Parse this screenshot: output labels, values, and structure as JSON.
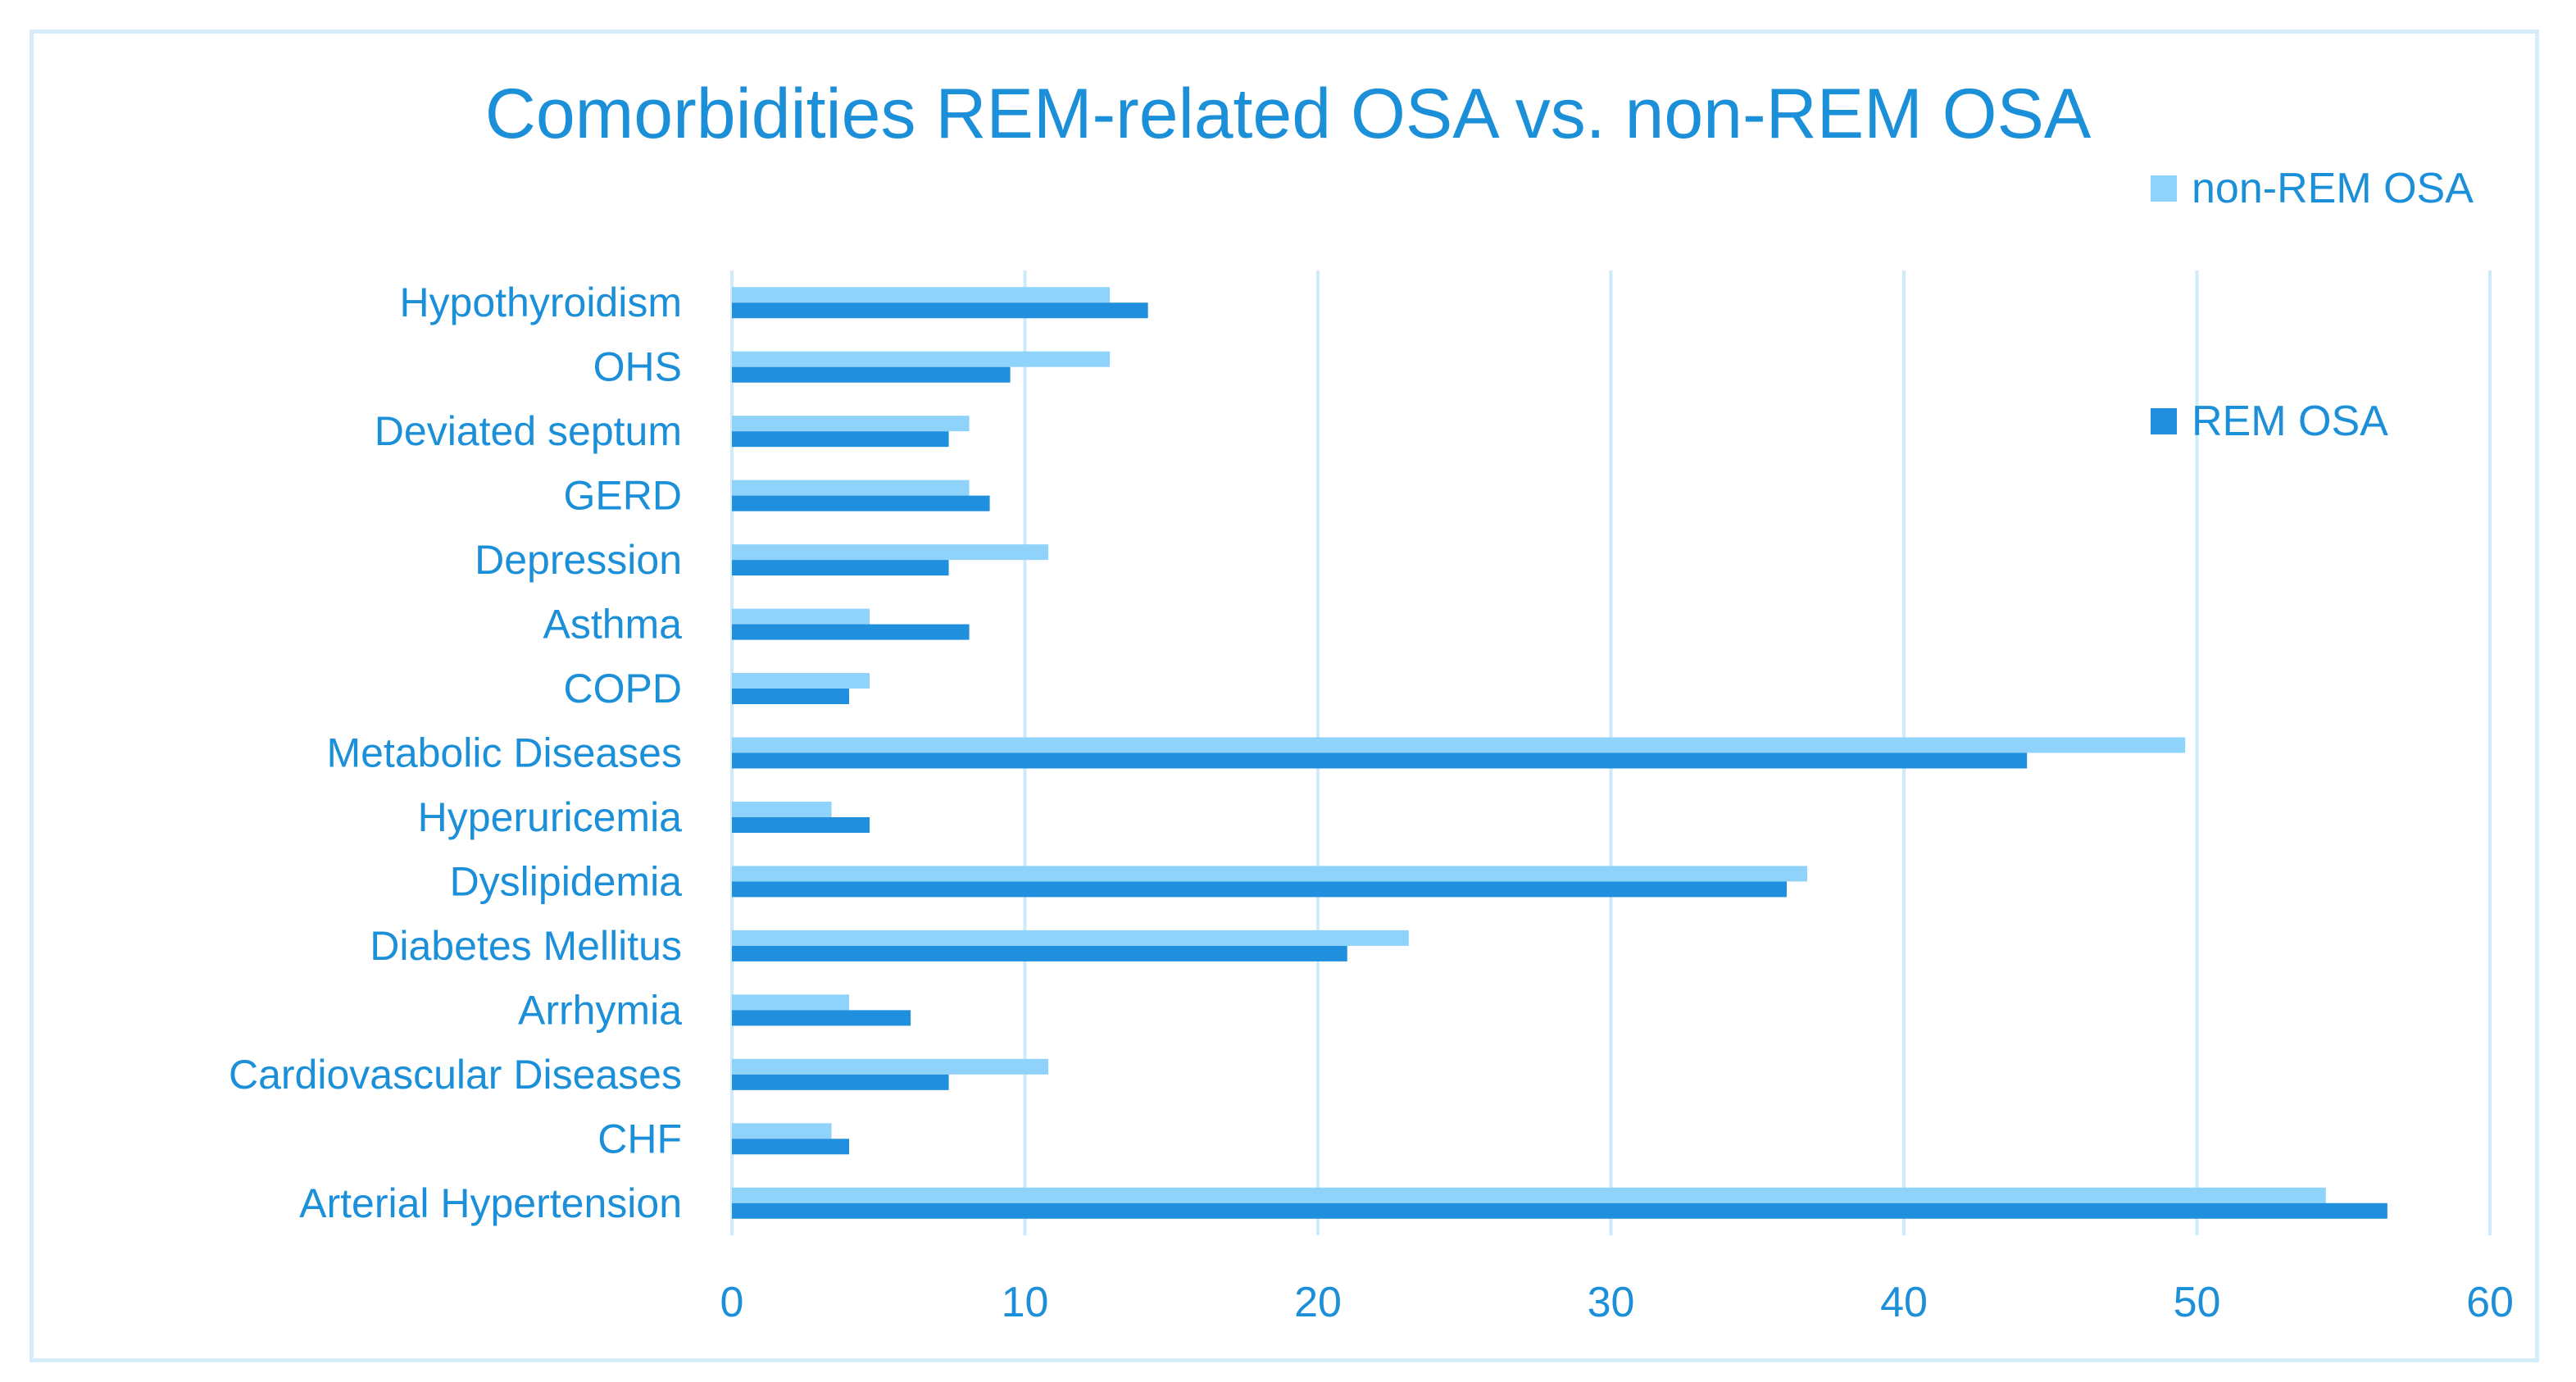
{
  "chart_data": {
    "type": "bar",
    "orientation": "horizontal",
    "title": "Comorbidities REM-related OSA  vs. non-REM OSA",
    "categories": [
      "Hypothyroidism",
      "OHS",
      "Deviated septum",
      "GERD",
      "Depression",
      "Asthma",
      "COPD",
      "Metabolic Diseases",
      "Hyperuricemia",
      "Dyslipidemia",
      "Diabetes Mellitus",
      "Arrhymia",
      "Cardiovascular Diseases",
      "CHF",
      "Arterial Hypertension"
    ],
    "series": [
      {
        "name": "non-REM OSA",
        "color": "#8fd3fb",
        "values": [
          12.9,
          12.9,
          8.1,
          8.1,
          10.8,
          4.7,
          4.7,
          49.6,
          3.4,
          36.7,
          23.1,
          4.0,
          10.8,
          3.4,
          54.4
        ]
      },
      {
        "name": "REM OSA",
        "color": "#1f8fde",
        "values": [
          14.2,
          9.5,
          7.4,
          8.8,
          7.4,
          8.1,
          4.0,
          44.2,
          4.7,
          36.0,
          21.0,
          6.1,
          7.4,
          4.0,
          56.5
        ]
      }
    ],
    "x_ticks": [
      "0",
      "10",
      "20",
      "30",
      "40",
      "50",
      "60"
    ],
    "xlim": [
      0,
      60
    ],
    "grid": true,
    "legend_position": "right"
  }
}
